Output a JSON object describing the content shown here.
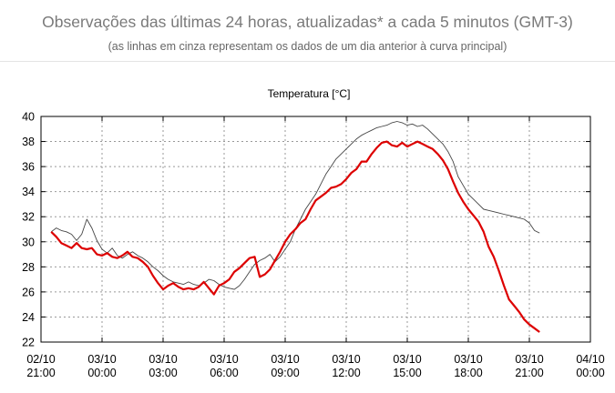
{
  "header": {
    "title": "Observações das últimas 24 horas, atualizadas* a cada 5 minutos (GMT-3)",
    "subtitle": "(as linhas em cinza representam os dados de um dia anterior à curva principal)"
  },
  "chart_data": {
    "type": "line",
    "title": "Temperatura [°C]",
    "xlabel": "",
    "ylabel": "",
    "ylim": [
      22,
      40
    ],
    "y_ticks": [
      22,
      24,
      26,
      28,
      30,
      32,
      34,
      36,
      38,
      40
    ],
    "x_unit": "hours since 02/10 21:00",
    "x_ticks": [
      {
        "x": 0,
        "date": "02/10",
        "time": "21:00"
      },
      {
        "x": 3,
        "date": "03/10",
        "time": "00:00"
      },
      {
        "x": 6,
        "date": "03/10",
        "time": "03:00"
      },
      {
        "x": 9,
        "date": "03/10",
        "time": "06:00"
      },
      {
        "x": 12,
        "date": "03/10",
        "time": "09:00"
      },
      {
        "x": 15,
        "date": "03/10",
        "time": "12:00"
      },
      {
        "x": 18,
        "date": "03/10",
        "time": "15:00"
      },
      {
        "x": 21,
        "date": "03/10",
        "time": "18:00"
      },
      {
        "x": 24,
        "date": "03/10",
        "time": "21:00"
      },
      {
        "x": 27,
        "date": "04/10",
        "time": "00:00"
      }
    ],
    "xlim": [
      0,
      27
    ],
    "grid": true,
    "legend": "none",
    "series": [
      {
        "role": "previous-day",
        "color": "#444444",
        "x": [
          0.5,
          0.75,
          1.0,
          1.25,
          1.5,
          1.75,
          2.0,
          2.25,
          2.5,
          2.75,
          3.0,
          3.25,
          3.5,
          3.75,
          4.0,
          4.25,
          4.5,
          4.75,
          5.0,
          5.25,
          5.5,
          5.75,
          6.0,
          6.25,
          6.5,
          6.75,
          7.0,
          7.25,
          7.5,
          7.75,
          8.0,
          8.25,
          8.5,
          8.75,
          9.0,
          9.25,
          9.5,
          9.75,
          10.0,
          10.25,
          10.5,
          10.75,
          11.0,
          11.25,
          11.5,
          11.75,
          12.0,
          12.25,
          12.5,
          12.75,
          13.0,
          13.25,
          13.5,
          13.75,
          14.0,
          14.25,
          14.5,
          14.75,
          15.0,
          15.25,
          15.5,
          15.75,
          16.0,
          16.25,
          16.5,
          16.75,
          17.0,
          17.25,
          17.5,
          17.75,
          18.0,
          18.25,
          18.5,
          18.75,
          19.0,
          19.25,
          19.5,
          19.75,
          20.0,
          20.25,
          20.5,
          20.75,
          21.0,
          21.25,
          21.5,
          21.75,
          22.0,
          22.25,
          22.5,
          22.75,
          23.0,
          23.25,
          23.5,
          23.75,
          24.0,
          24.25,
          24.5
        ],
        "y": [
          30.8,
          31.1,
          30.9,
          30.8,
          30.6,
          30.1,
          30.6,
          31.8,
          31.1,
          30.1,
          29.4,
          29.1,
          29.5,
          28.9,
          28.7,
          29.0,
          29.2,
          28.9,
          28.7,
          28.4,
          28.0,
          27.7,
          27.3,
          27.0,
          26.8,
          26.7,
          26.6,
          26.8,
          26.6,
          26.5,
          26.7,
          27.0,
          26.9,
          26.6,
          26.4,
          26.3,
          26.2,
          26.5,
          27.0,
          27.6,
          28.2,
          28.5,
          28.7,
          29.0,
          28.4,
          28.8,
          29.4,
          30.0,
          31.0,
          31.8,
          32.6,
          33.2,
          33.8,
          34.6,
          35.4,
          36.0,
          36.6,
          37.0,
          37.4,
          37.8,
          38.2,
          38.5,
          38.7,
          38.9,
          39.1,
          39.2,
          39.3,
          39.5,
          39.6,
          39.5,
          39.3,
          39.4,
          39.2,
          39.3,
          39.0,
          38.6,
          38.2,
          37.8,
          37.2,
          36.4,
          35.2,
          34.5,
          33.8,
          33.4,
          33.0,
          32.6,
          32.5,
          32.4,
          32.3,
          32.2,
          32.1,
          32.0,
          31.9,
          31.8,
          31.5,
          30.9,
          30.7
        ]
      },
      {
        "role": "current",
        "color": "#dd0000",
        "x": [
          0.5,
          0.75,
          1.0,
          1.25,
          1.5,
          1.75,
          2.0,
          2.25,
          2.5,
          2.75,
          3.0,
          3.25,
          3.5,
          3.75,
          4.0,
          4.25,
          4.5,
          4.75,
          5.0,
          5.25,
          5.5,
          5.75,
          6.0,
          6.25,
          6.5,
          6.75,
          7.0,
          7.25,
          7.5,
          7.75,
          8.0,
          8.25,
          8.5,
          8.75,
          9.0,
          9.25,
          9.5,
          9.75,
          10.0,
          10.25,
          10.5,
          10.75,
          11.0,
          11.25,
          11.5,
          11.75,
          12.0,
          12.25,
          12.5,
          12.75,
          13.0,
          13.25,
          13.5,
          13.75,
          14.0,
          14.25,
          14.5,
          14.75,
          15.0,
          15.25,
          15.5,
          15.75,
          16.0,
          16.25,
          16.5,
          16.75,
          17.0,
          17.25,
          17.5,
          17.75,
          18.0,
          18.25,
          18.5,
          18.75,
          19.0,
          19.25,
          19.5,
          19.75,
          20.0,
          20.25,
          20.5,
          20.75,
          21.0,
          21.25,
          21.5,
          21.75,
          22.0,
          22.25,
          22.5,
          22.75,
          23.0,
          23.25,
          23.5,
          23.75,
          24.0,
          24.25,
          24.5
        ],
        "y": [
          30.8,
          30.4,
          29.9,
          29.7,
          29.5,
          29.9,
          29.5,
          29.4,
          29.5,
          29.0,
          28.9,
          29.1,
          28.8,
          28.7,
          28.9,
          29.2,
          28.8,
          28.7,
          28.4,
          28.0,
          27.3,
          26.7,
          26.2,
          26.5,
          26.7,
          26.4,
          26.2,
          26.3,
          26.2,
          26.4,
          26.8,
          26.3,
          25.8,
          26.5,
          26.7,
          27.0,
          27.6,
          27.9,
          28.3,
          28.7,
          28.8,
          27.2,
          27.4,
          27.8,
          28.5,
          29.2,
          30.0,
          30.6,
          31.0,
          31.5,
          31.8,
          32.6,
          33.3,
          33.6,
          33.9,
          34.3,
          34.4,
          34.6,
          35.0,
          35.5,
          35.8,
          36.4,
          36.4,
          37.0,
          37.5,
          37.9,
          38.0,
          37.7,
          37.6,
          37.9,
          37.6,
          37.8,
          38.0,
          37.8,
          37.6,
          37.4,
          37.0,
          36.5,
          35.8,
          34.8,
          33.9,
          33.2,
          32.6,
          32.1,
          31.6,
          30.8,
          29.6,
          28.8,
          27.7,
          26.5,
          25.4,
          24.9,
          24.4,
          23.8,
          23.4,
          23.1,
          22.8
        ]
      }
    ]
  }
}
